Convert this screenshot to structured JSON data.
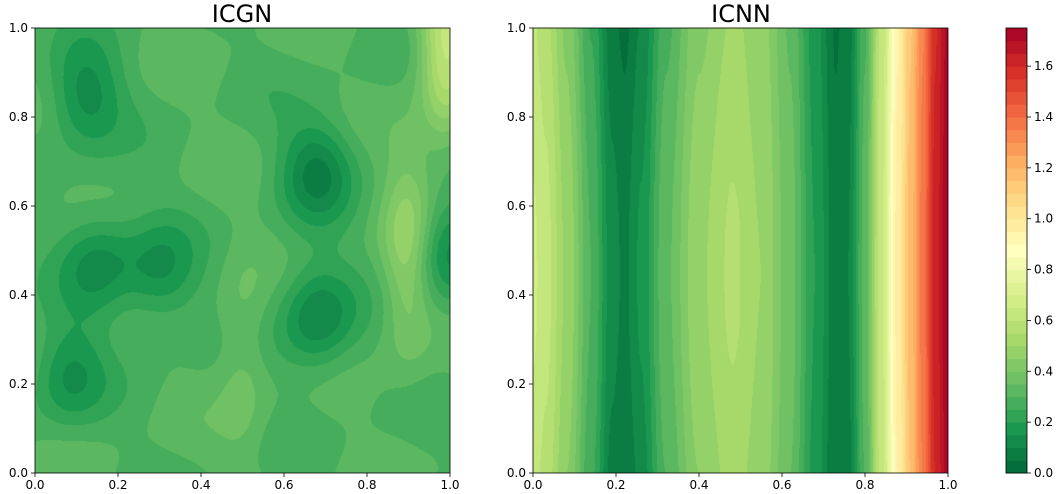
{
  "chart_data": [
    {
      "type": "heatmap",
      "title": "ICGN",
      "xlabel": "",
      "ylabel": "",
      "xlim": [
        0.0,
        1.0
      ],
      "ylim": [
        0.0,
        1.0
      ],
      "xticks": [
        "0.0",
        "0.2",
        "0.4",
        "0.6",
        "0.8",
        "1.0"
      ],
      "yticks": [
        "0.0",
        "0.2",
        "0.4",
        "0.6",
        "0.8",
        "1.0"
      ],
      "colorscale": "RdYlGn_r",
      "clim": [
        0.0,
        1.75
      ],
      "field_description_values": {
        "base_level": 0.3,
        "dark_regions": [
          {
            "x": 0.12,
            "y": 0.85,
            "value": 0.12
          },
          {
            "x": 0.15,
            "y": 0.47,
            "value": 0.14
          },
          {
            "x": 0.3,
            "y": 0.45,
            "value": 0.15
          },
          {
            "x": 0.08,
            "y": 0.22,
            "value": 0.15
          },
          {
            "x": 0.68,
            "y": 0.68,
            "value": 0.1
          },
          {
            "x": 0.68,
            "y": 0.35,
            "value": 0.1
          },
          {
            "x": 0.99,
            "y": 0.5,
            "value": 0.12
          }
        ],
        "light_regions": [
          {
            "x": 0.9,
            "y": 0.5,
            "value": 0.5
          },
          {
            "x": 0.99,
            "y": 0.98,
            "value": 0.62
          },
          {
            "x": 0.5,
            "y": 0.25,
            "value": 0.38
          }
        ]
      },
      "grid": false
    },
    {
      "type": "heatmap",
      "title": "ICNN",
      "xlabel": "",
      "ylabel": "",
      "xlim": [
        0.0,
        1.0
      ],
      "ylim": [
        0.0,
        1.0
      ],
      "xticks": [
        "0.0",
        "0.2",
        "0.4",
        "0.6",
        "0.8",
        "1.0"
      ],
      "yticks": [
        "0.0",
        "0.2",
        "0.4",
        "0.6",
        "0.8",
        "1.0"
      ],
      "colorscale": "RdYlGn_r",
      "clim": [
        0.0,
        1.75
      ],
      "profile_x": [
        0.0,
        0.03,
        0.08,
        0.14,
        0.19,
        0.22,
        0.26,
        0.32,
        0.4,
        0.48,
        0.55,
        0.62,
        0.68,
        0.73,
        0.76,
        0.8,
        0.84,
        0.88,
        0.91,
        0.94,
        0.97,
        1.0
      ],
      "profile_values": [
        0.62,
        0.58,
        0.45,
        0.26,
        0.08,
        0.05,
        0.12,
        0.3,
        0.45,
        0.52,
        0.48,
        0.35,
        0.18,
        0.05,
        0.08,
        0.3,
        0.62,
        0.95,
        1.15,
        1.35,
        1.6,
        1.72
      ],
      "grid": false
    }
  ],
  "colorbar": {
    "colorscale": "RdYlGn_r",
    "range": [
      0.0,
      1.75
    ],
    "levels": 35,
    "ticks": [
      "0.0",
      "0.2",
      "0.4",
      "0.6",
      "0.8",
      "1.0",
      "1.2",
      "1.4",
      "1.6"
    ],
    "tick_values": [
      0.0,
      0.2,
      0.4,
      0.6,
      0.8,
      1.0,
      1.2,
      1.4,
      1.6
    ]
  },
  "colors": {
    "RdYlGn_r": [
      "#006837",
      "#1a9850",
      "#66bd63",
      "#a6d96a",
      "#d9ef8b",
      "#ffffbf",
      "#fee08b",
      "#fdae61",
      "#f46d43",
      "#d73027",
      "#a50026"
    ]
  }
}
